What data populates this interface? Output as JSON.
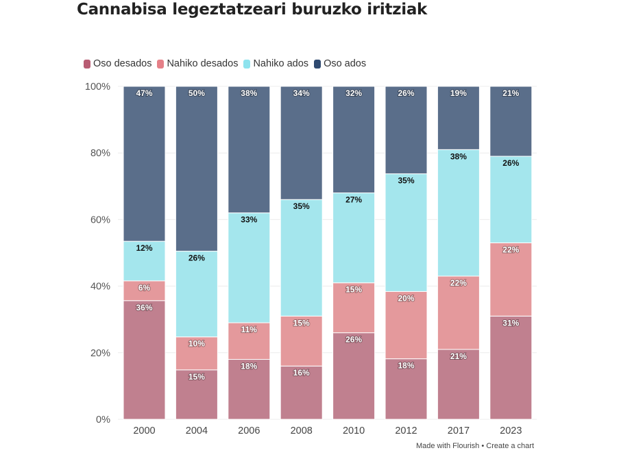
{
  "title": "Cannabisa legeztatzeari buruzko iritziak",
  "footer": {
    "made_with": "Made with Flourish",
    "separator": "•",
    "create": "Create a chart"
  },
  "chart_data": {
    "type": "bar",
    "stacked": "100%",
    "title": "Cannabisa legeztatzeari buruzko iritziak",
    "categories": [
      "2000",
      "2004",
      "2006",
      "2008",
      "2010",
      "2012",
      "2017",
      "2023"
    ],
    "series": [
      {
        "name": "Oso desados",
        "color": "#c0808f",
        "legend_color": "#b85c73",
        "label_color": "#ffffff",
        "values": [
          36,
          15,
          18,
          16,
          26,
          18,
          21,
          31
        ]
      },
      {
        "name": "Nahiko desados",
        "color": "#e4999c",
        "legend_color": "#e58088",
        "label_color": "#ffffff",
        "values": [
          6,
          10,
          11,
          15,
          15,
          20,
          22,
          22
        ]
      },
      {
        "name": "Nahiko ados",
        "color": "#a4e6ed",
        "legend_color": "#8ee3ee",
        "label_color": "#111111",
        "values": [
          12,
          26,
          33,
          35,
          27,
          35,
          38,
          26
        ]
      },
      {
        "name": "Oso ados",
        "color": "#5a6e8a",
        "legend_color": "#2f4a70",
        "label_color": "#ffffff",
        "values": [
          47,
          50,
          38,
          34,
          32,
          26,
          19,
          21
        ]
      }
    ],
    "ylim": [
      0,
      100
    ],
    "yticks": [
      "0%",
      "20%",
      "40%",
      "60%",
      "80%",
      "100%"
    ],
    "grid": true,
    "legend": "top-left"
  }
}
